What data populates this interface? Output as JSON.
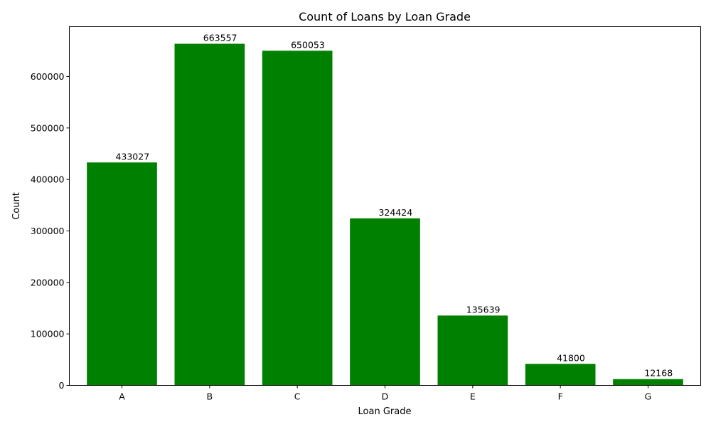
{
  "chart_data": {
    "type": "bar",
    "title": "Count of Loans by Loan Grade",
    "xlabel": "Loan Grade",
    "ylabel": "Count",
    "categories": [
      "A",
      "B",
      "C",
      "D",
      "E",
      "F",
      "G"
    ],
    "values": [
      433027,
      663557,
      650053,
      324424,
      135639,
      41800,
      12168
    ],
    "data_labels": [
      "433027",
      "663557",
      "650053",
      "324424",
      "135639",
      "41800",
      "12168"
    ],
    "yticks": [
      0,
      100000,
      200000,
      300000,
      400000,
      500000,
      600000
    ],
    "ytick_labels": [
      "0",
      "100000",
      "200000",
      "300000",
      "400000",
      "500000",
      "600000"
    ],
    "ylim": [
      0,
      696735
    ],
    "bar_color": "#008000",
    "grid": false,
    "legend": false
  }
}
